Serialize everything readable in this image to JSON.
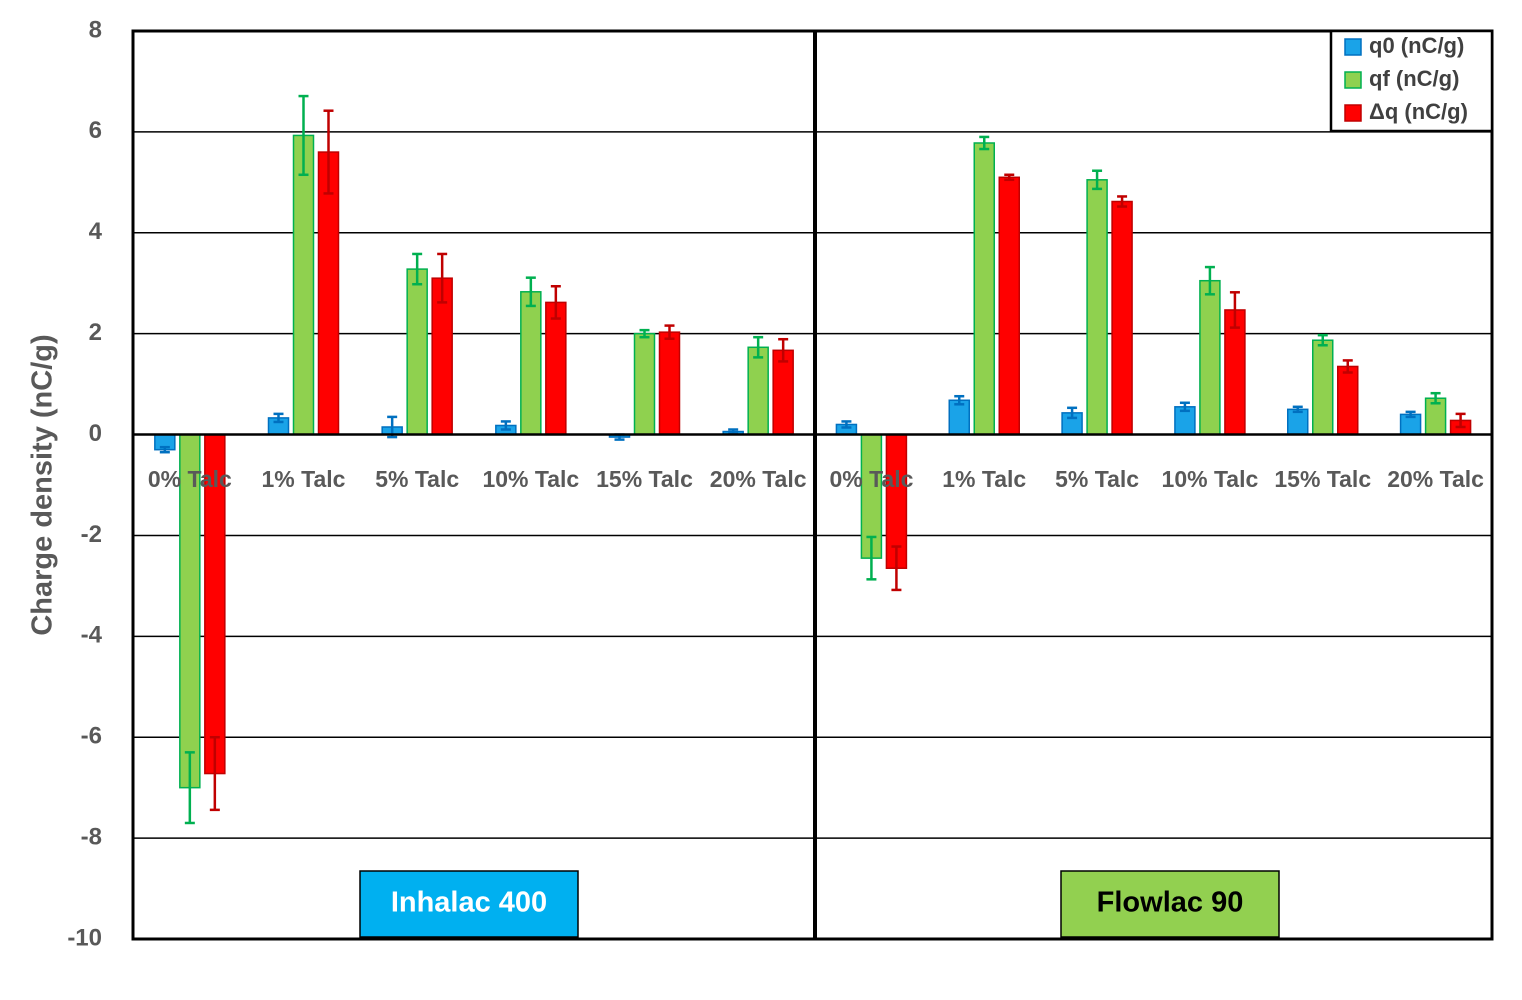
{
  "chart_data": {
    "type": "bar",
    "ylabel": "Charge density (nC/g)",
    "ylim": [
      -10,
      8
    ],
    "yticks": [
      8,
      6,
      4,
      2,
      0,
      -2,
      -4,
      -6,
      -8,
      -10
    ],
    "grid": true,
    "legend_position": "top-right",
    "legend": [
      {
        "name": "q0 (nC/g)",
        "color": "#1aa3e8"
      },
      {
        "name": "qf (nC/g)",
        "color": "#8fd14f"
      },
      {
        "name": "Δq (nC/g)",
        "color": "#ff0000"
      }
    ],
    "panels": [
      {
        "label": "Inhalac 400",
        "label_color": "#00b0f0",
        "categories": [
          "0% Talc",
          "1% Talc",
          "5% Talc",
          "10% Talc",
          "15% Talc",
          "20% Talc"
        ],
        "series": [
          {
            "name": "q0 (nC/g)",
            "values": [
              -0.3,
              0.33,
              0.15,
              0.18,
              -0.05,
              0.06
            ],
            "errors": [
              0.05,
              0.08,
              0.2,
              0.08,
              0.05,
              0.04
            ]
          },
          {
            "name": "qf (nC/g)",
            "values": [
              -7.0,
              5.93,
              3.28,
              2.83,
              2.0,
              1.73
            ],
            "errors": [
              0.7,
              0.78,
              0.3,
              0.28,
              0.07,
              0.2
            ]
          },
          {
            "name": "Δq (nC/g)",
            "values": [
              -6.72,
              5.6,
              3.1,
              2.62,
              2.03,
              1.67
            ],
            "errors": [
              0.72,
              0.82,
              0.48,
              0.32,
              0.13,
              0.22
            ]
          }
        ]
      },
      {
        "label": "Flowlac 90",
        "label_color": "#92d050",
        "categories": [
          "0% Talc",
          "1% Talc",
          "5% Talc",
          "10% Talc",
          "15% Talc",
          "20% Talc"
        ],
        "series": [
          {
            "name": "q0 (nC/g)",
            "values": [
              0.2,
              0.68,
              0.43,
              0.55,
              0.5,
              0.4
            ],
            "errors": [
              0.06,
              0.08,
              0.1,
              0.08,
              0.05,
              0.05
            ]
          },
          {
            "name": "qf (nC/g)",
            "values": [
              -2.45,
              5.78,
              5.05,
              3.05,
              1.87,
              0.72
            ],
            "errors": [
              0.42,
              0.12,
              0.18,
              0.27,
              0.1,
              0.1
            ]
          },
          {
            "name": "Δq (nC/g)",
            "values": [
              -2.65,
              5.1,
              4.62,
              2.47,
              1.35,
              0.28
            ],
            "errors": [
              0.43,
              0.05,
              0.1,
              0.35,
              0.12,
              0.13
            ]
          }
        ]
      }
    ]
  }
}
